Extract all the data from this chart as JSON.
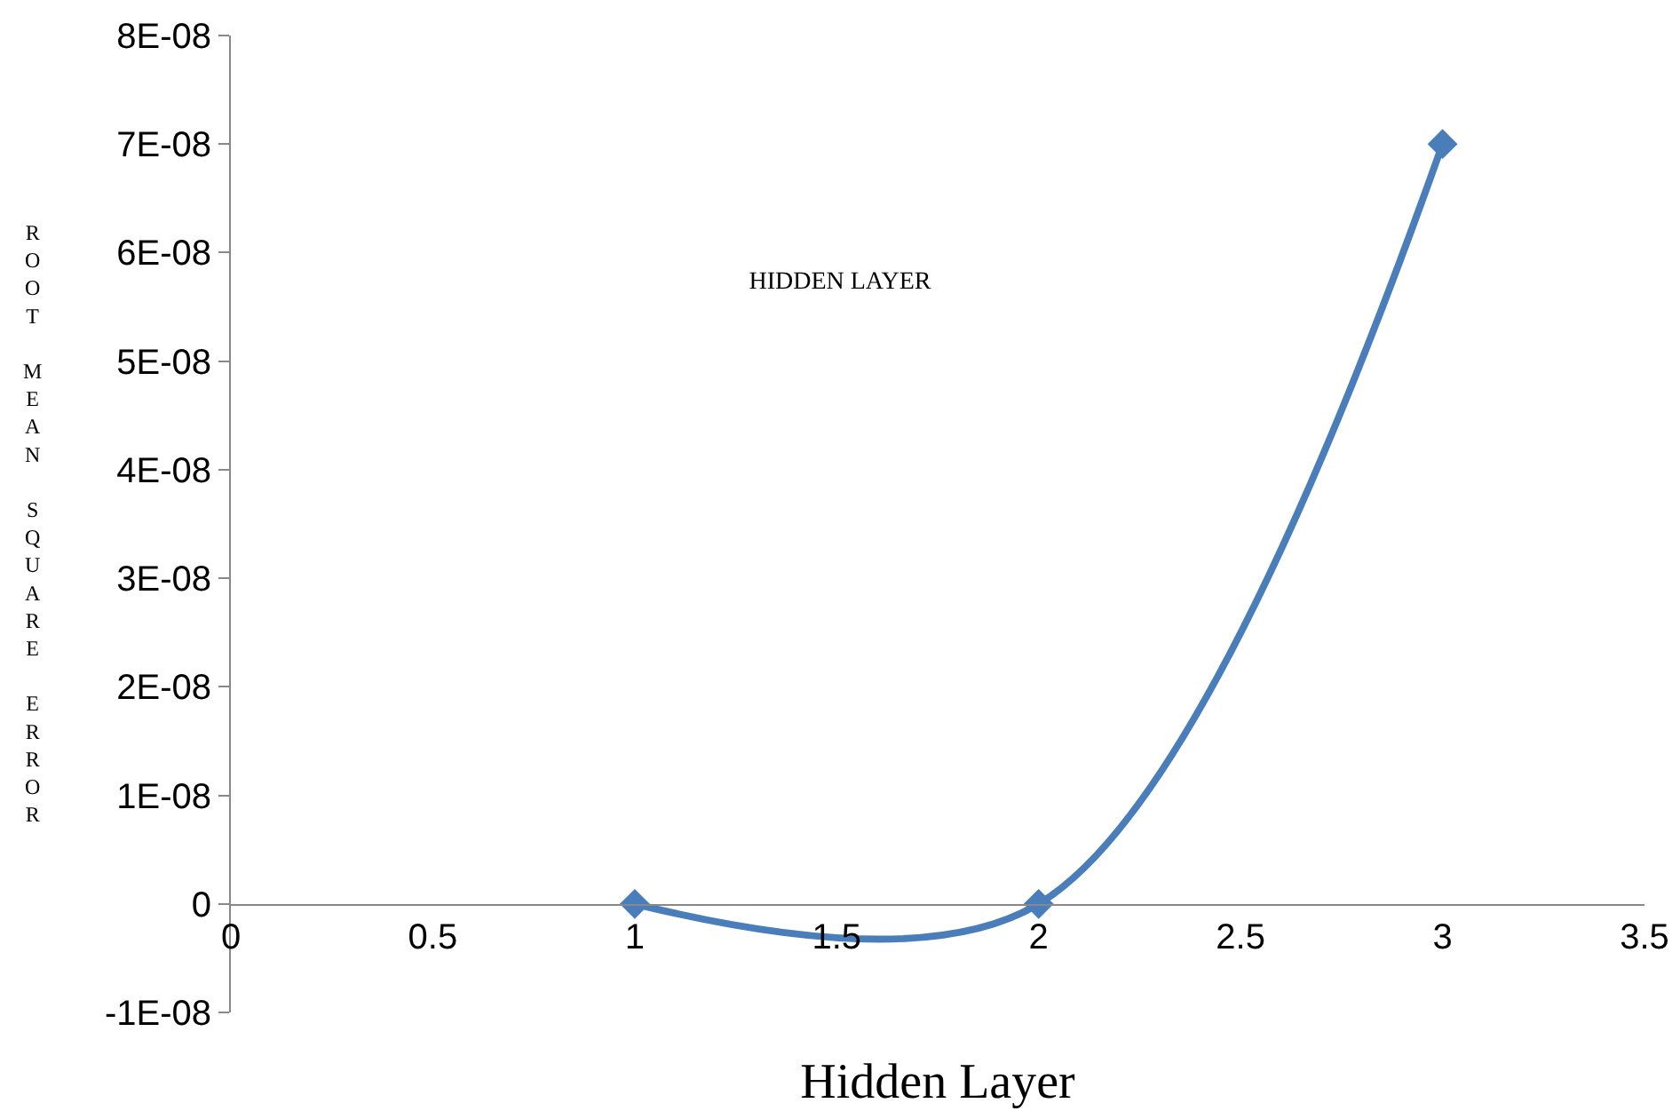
{
  "chart_data": {
    "type": "line",
    "title": "HIDDEN LAYER",
    "xlabel": "Hidden Layer",
    "ylabel": "ROOT MEAN SQUARE ERROR",
    "x": [
      1,
      2,
      3
    ],
    "series": [
      {
        "color": "#4a7ebb",
        "values": [
          0,
          0,
          7e-08
        ]
      }
    ],
    "marker": "diamond",
    "line_style": "solid",
    "grid": false,
    "xlim": [
      0,
      3.5
    ],
    "xticks": [
      0,
      0.5,
      1,
      1.5,
      2,
      2.5,
      3,
      3.5
    ],
    "ylim": [
      -1e-08,
      8e-08
    ],
    "yticks": [
      {
        "value": -1e-08,
        "label": "-1E-08"
      },
      0,
      {
        "value": 1e-08,
        "label": "1E-08"
      },
      {
        "value": 2e-08,
        "label": "2E-08"
      },
      {
        "value": 3e-08,
        "label": "3E-08"
      },
      {
        "value": 4e-08,
        "label": "4E-08"
      },
      {
        "value": 5e-08,
        "label": "5E-08"
      },
      {
        "value": 6e-08,
        "label": "6E-08"
      },
      {
        "value": 7e-08,
        "label": "7E-08"
      },
      {
        "value": 8e-08,
        "label": "8E-08"
      }
    ]
  }
}
